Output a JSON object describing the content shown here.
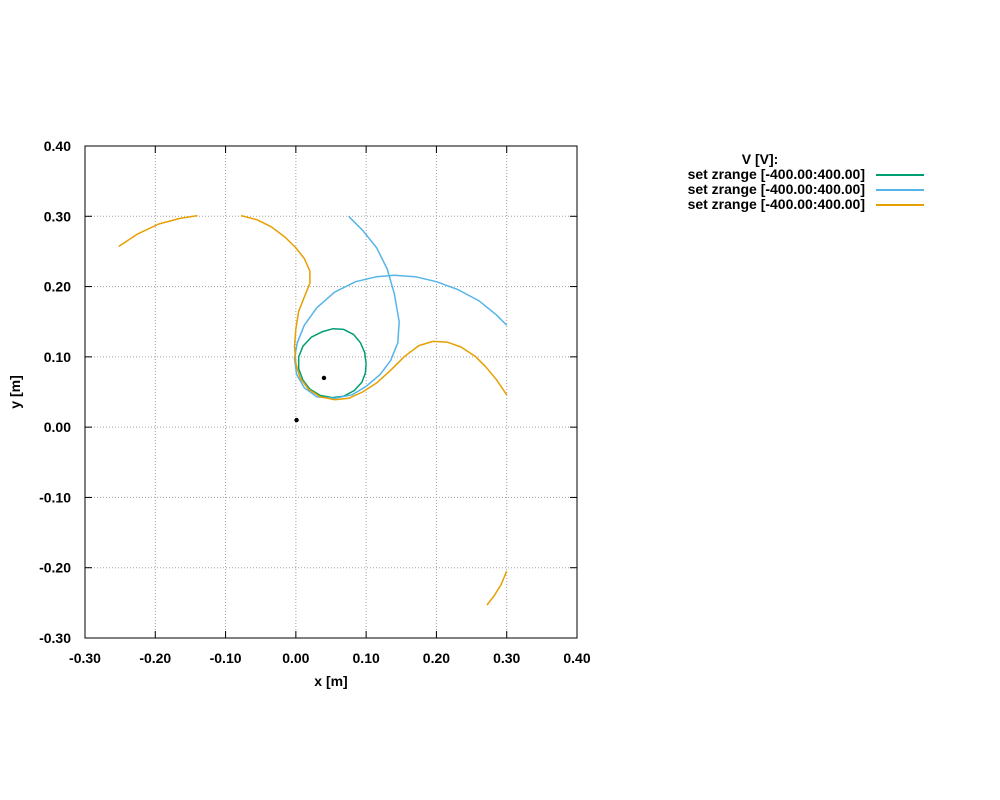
{
  "chart_data": {
    "type": "line",
    "xlabel": "x [m]",
    "ylabel": "y [m]",
    "xlim": [
      -0.3,
      0.4
    ],
    "ylim": [
      -0.3,
      0.4
    ],
    "x_ticks": [
      "-0.30",
      "-0.20",
      "-0.10",
      "0.00",
      "0.10",
      "0.20",
      "0.30",
      "0.40"
    ],
    "y_ticks": [
      "-0.30",
      "-0.20",
      "-0.10",
      "0.00",
      "0.10",
      "0.20",
      "0.30",
      "0.40"
    ],
    "grid": true,
    "legend": {
      "title": "V [V]:",
      "placement": "outside-top-right"
    },
    "series": [
      {
        "name": "set zrange [-400.00:400.00]",
        "color": "#009e73",
        "segments": [
          [
            [
              0.1,
              0.09
            ],
            [
              0.098,
              0.106
            ],
            [
              0.092,
              0.12
            ],
            [
              0.082,
              0.132
            ],
            [
              0.068,
              0.139
            ],
            [
              0.053,
              0.14
            ],
            [
              0.038,
              0.136
            ],
            [
              0.022,
              0.128
            ],
            [
              0.01,
              0.115
            ],
            [
              0.004,
              0.1
            ],
            [
              0.004,
              0.083
            ],
            [
              0.01,
              0.067
            ],
            [
              0.02,
              0.054
            ],
            [
              0.035,
              0.045
            ],
            [
              0.052,
              0.042
            ],
            [
              0.068,
              0.044
            ],
            [
              0.083,
              0.052
            ],
            [
              0.094,
              0.064
            ],
            [
              0.099,
              0.077
            ],
            [
              0.1,
              0.09
            ]
          ]
        ]
      },
      {
        "name": "set zrange [-400.00:400.00]",
        "color": "#56b4e9",
        "segments": [
          [
            [
              0.075,
              0.3
            ],
            [
              0.095,
              0.28
            ],
            [
              0.115,
              0.255
            ],
            [
              0.13,
              0.225
            ],
            [
              0.14,
              0.19
            ],
            [
              0.147,
              0.15
            ],
            [
              0.145,
              0.12
            ],
            [
              0.135,
              0.095
            ],
            [
              0.12,
              0.075
            ],
            [
              0.1,
              0.058
            ],
            [
              0.08,
              0.046
            ],
            [
              0.055,
              0.041
            ],
            [
              0.03,
              0.043
            ],
            [
              0.012,
              0.056
            ],
            [
              0.001,
              0.075
            ],
            [
              -0.002,
              0.098
            ],
            [
              0.002,
              0.12
            ],
            [
              0.012,
              0.145
            ],
            [
              0.03,
              0.17
            ],
            [
              0.055,
              0.192
            ],
            [
              0.085,
              0.207
            ],
            [
              0.115,
              0.214
            ],
            [
              0.14,
              0.216
            ],
            [
              0.17,
              0.214
            ],
            [
              0.2,
              0.207
            ],
            [
              0.23,
              0.196
            ],
            [
              0.26,
              0.18
            ],
            [
              0.285,
              0.16
            ],
            [
              0.3,
              0.145
            ]
          ]
        ]
      },
      {
        "name": "set zrange [-400.00:400.00]",
        "color": "#e69f00",
        "segments": [
          [
            [
              -0.252,
              0.257
            ],
            [
              -0.225,
              0.275
            ],
            [
              -0.195,
              0.289
            ],
            [
              -0.165,
              0.297
            ],
            [
              -0.14,
              0.301
            ]
          ],
          [
            [
              -0.078,
              0.301
            ],
            [
              -0.055,
              0.295
            ],
            [
              -0.035,
              0.285
            ],
            [
              -0.015,
              0.27
            ],
            [
              0.0,
              0.255
            ],
            [
              0.012,
              0.24
            ],
            [
              0.02,
              0.222
            ],
            [
              0.02,
              0.205
            ],
            [
              0.012,
              0.185
            ],
            [
              0.004,
              0.165
            ],
            [
              0.0,
              0.14
            ],
            [
              -0.002,
              0.115
            ],
            [
              0.0,
              0.09
            ],
            [
              0.006,
              0.07
            ],
            [
              0.018,
              0.054
            ],
            [
              0.035,
              0.043
            ],
            [
              0.055,
              0.039
            ],
            [
              0.075,
              0.041
            ],
            [
              0.095,
              0.05
            ],
            [
              0.115,
              0.063
            ],
            [
              0.135,
              0.081
            ],
            [
              0.155,
              0.101
            ],
            [
              0.175,
              0.116
            ],
            [
              0.195,
              0.122
            ],
            [
              0.215,
              0.121
            ],
            [
              0.235,
              0.114
            ],
            [
              0.255,
              0.101
            ],
            [
              0.27,
              0.086
            ],
            [
              0.285,
              0.068
            ],
            [
              0.3,
              0.046
            ]
          ],
          [
            [
              0.272,
              -0.253
            ],
            [
              0.282,
              -0.24
            ],
            [
              0.292,
              -0.224
            ],
            [
              0.3,
              -0.205
            ]
          ]
        ]
      }
    ],
    "points": [
      {
        "x": 0.04,
        "y": 0.07,
        "color": "#000000"
      },
      {
        "x": 0.001,
        "y": 0.01,
        "color": "#000000"
      }
    ]
  }
}
